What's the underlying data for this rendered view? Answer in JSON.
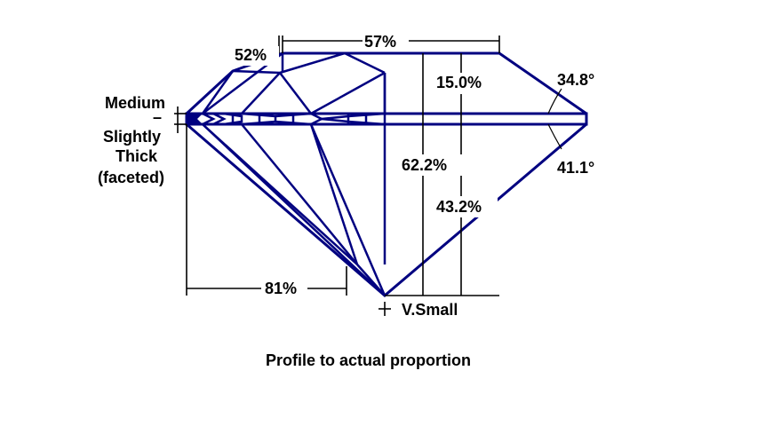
{
  "labels": {
    "table_pct": "57%",
    "crown_pct": "52%",
    "crown_height": "15.0%",
    "crown_angle": "34.8°",
    "total_depth": "62.2%",
    "pavilion_depth": "43.2%",
    "pavilion_angle": "41.1°",
    "lower_half": "81%",
    "girdle_line1": "Medium",
    "girdle_dash": "–",
    "girdle_line2": "Slightly",
    "girdle_line3": "Thick",
    "girdle_line4": "(faceted)",
    "culet": "V.Small",
    "caption": "Profile to actual proportion"
  },
  "colors": {
    "outline": "#000080",
    "dimension": "#000000",
    "background": "#ffffff"
  }
}
